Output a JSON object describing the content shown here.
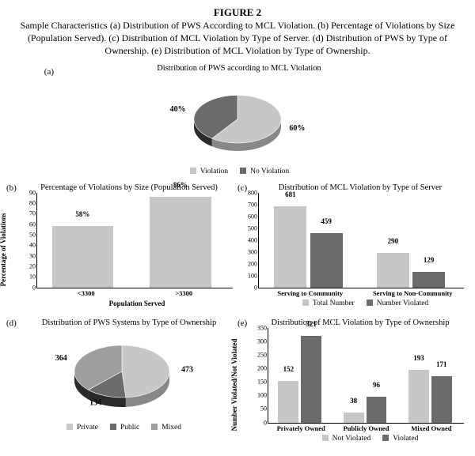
{
  "figure_label": "FIGURE 2",
  "caption": "Sample Characteristics (a) Distribution of PWS According to MCL Violation. (b) Percentage of Violations by Size (Population Served). (c) Distribution of MCL Violation by Type of Server. (d) Distribution of PWS by Type of Ownership. (e) Distribution of MCL Violation by Type of Ownership.",
  "colors": {
    "light": "#c7c7c7",
    "dark": "#6b6b6b",
    "mid": "#9e9e9e",
    "shadow_dark": "#2a2a2a",
    "shadow_light": "#888888"
  },
  "a": {
    "label": "(a)",
    "title": "Distribution of PWS according to MCL Violation",
    "slices": [
      {
        "name": "Violation",
        "pct": 60,
        "color": "#c7c7c7",
        "text": "60%"
      },
      {
        "name": "No Violation",
        "pct": 40,
        "color": "#6b6b6b",
        "text": "40%"
      }
    ],
    "legend": [
      "Violation",
      "No Violation"
    ]
  },
  "b": {
    "label": "(b)",
    "title": "Percentage of Violations by Size (Population Served)",
    "ylabel": "Percentage of Violations",
    "xlabel": "Population Served",
    "ylim": [
      0,
      90
    ],
    "ystep": 10,
    "bar_color": "#c7c7c7",
    "bars": [
      {
        "cat": "<3300",
        "val": 58,
        "text": "58%"
      },
      {
        "cat": ">3300",
        "val": 86,
        "text": "86%"
      }
    ]
  },
  "c": {
    "label": "(c)",
    "title": "Distribution of MCL Violation by Type of Server",
    "ylim": [
      0,
      800
    ],
    "ystep": 100,
    "series": [
      {
        "name": "Total Number",
        "color": "#c7c7c7"
      },
      {
        "name": "Number Violated",
        "color": "#6b6b6b"
      }
    ],
    "groups": [
      {
        "cat": "Serving to Community",
        "vals": [
          681,
          459
        ]
      },
      {
        "cat": "Serving to Non-Community",
        "vals": [
          290,
          129
        ]
      }
    ]
  },
  "d": {
    "label": "(d)",
    "title": "Distribution of PWS Systems by Type of Ownership",
    "slices": [
      {
        "name": "Private",
        "val": 473,
        "color": "#c7c7c7"
      },
      {
        "name": "Public",
        "val": 134,
        "color": "#6b6b6b"
      },
      {
        "name": "Mixed",
        "val": 364,
        "color": "#9e9e9e"
      }
    ],
    "legend": [
      "Private",
      "Public",
      "Mixed"
    ]
  },
  "e": {
    "label": "(e)",
    "title": "Distribution of MCL Violation by Type of Ownership",
    "ylabel": "Number Violated/Not Violated",
    "ylim": [
      0,
      350
    ],
    "ystep": 50,
    "series": [
      {
        "name": "Not Violated",
        "color": "#c7c7c7"
      },
      {
        "name": "Violated",
        "color": "#6b6b6b"
      }
    ],
    "groups": [
      {
        "cat": "Privately Owned",
        "vals": [
          152,
          321
        ]
      },
      {
        "cat": "Publicly Owned",
        "vals": [
          38,
          96
        ]
      },
      {
        "cat": "Mixed Owned",
        "vals": [
          193,
          171
        ]
      }
    ]
  }
}
